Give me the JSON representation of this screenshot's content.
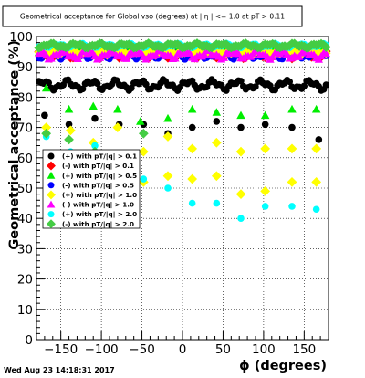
{
  "chart_data": {
    "type": "scatter",
    "title": "Geometrical acceptance for Global vsφ (degrees) at | η | <= 1.0 at pT > 0.11",
    "xlabel": "ϕ (degrees)",
    "ylabel": "Geometrical acceptance (%)",
    "xlim": [
      -180,
      180
    ],
    "ylim": [
      0,
      100
    ],
    "x_ticks": [
      -150,
      -100,
      -50,
      0,
      50,
      100,
      150
    ],
    "x_tick_labels": [
      "−150",
      "−100",
      "−50",
      "0",
      "50",
      "100",
      "150"
    ],
    "y_ticks": [
      0,
      10,
      20,
      30,
      40,
      50,
      60,
      70,
      80,
      90,
      100
    ],
    "y_tick_labels": [
      "0",
      "10",
      "20",
      "30",
      "40",
      "50",
      "60",
      "70",
      "80",
      "90",
      "100"
    ],
    "grid": true,
    "legend_position": "middle-left",
    "series": [
      {
        "name": "(+) with pT/|q| > 0.1",
        "color": "#000000",
        "marker": "circle",
        "level": 84,
        "amp": 1.2
      },
      {
        "name": "(-) with pT/|q| > 0.1",
        "color": "#ff0000",
        "marker": "square",
        "level": 94,
        "amp": 0.8
      },
      {
        "name": "(+) with pT/|q| > 0.5",
        "color": "#00ee00",
        "marker": "triangle",
        "level": 95,
        "amp": 0.8
      },
      {
        "name": "(-) with pT/|q| > 0.5",
        "color": "#0000ff",
        "marker": "circle",
        "level": 94,
        "amp": 1.0
      },
      {
        "name": "(+) with pT/|q| > 1.0",
        "color": "#ffff00",
        "marker": "square",
        "level": 95,
        "amp": 0.8
      },
      {
        "name": "(-) with pT/|q| > 1.0",
        "color": "#ff00ff",
        "marker": "triangle",
        "level": 94,
        "amp": 1.0
      },
      {
        "name": "(+) with pT/|q| > 2.0",
        "color": "#00ffff",
        "marker": "circle",
        "level": 97,
        "amp": 0.5
      },
      {
        "name": "(-) with pT/|q| > 2.0",
        "color": "#44cc44",
        "marker": "square",
        "level": 97,
        "amp": 0.5
      }
    ],
    "sparse_points": [
      {
        "series": 0,
        "marker": "circle",
        "color": "#000000",
        "points": [
          [
            -170,
            74
          ],
          [
            -140,
            71
          ],
          [
            -108,
            73
          ],
          [
            -78,
            71
          ],
          [
            -48,
            71
          ],
          [
            -18,
            68
          ],
          [
            12,
            70
          ],
          [
            42,
            72
          ],
          [
            72,
            70
          ],
          [
            102,
            71
          ],
          [
            135,
            70
          ],
          [
            168,
            66
          ]
        ]
      },
      {
        "series": 2,
        "marker": "triangle",
        "color": "#00ee00",
        "points": [
          [
            -168,
            83
          ],
          [
            -140,
            76
          ],
          [
            -110,
            77
          ],
          [
            -80,
            76
          ],
          [
            -52,
            72
          ],
          [
            -18,
            73
          ],
          [
            12,
            76
          ],
          [
            42,
            75
          ],
          [
            72,
            74
          ],
          [
            102,
            74
          ],
          [
            135,
            76
          ],
          [
            165,
            76
          ]
        ]
      },
      {
        "series": 4,
        "marker": "square",
        "color": "#ffff00",
        "points": [
          [
            -168,
            70
          ],
          [
            -138,
            69
          ],
          [
            -110,
            65
          ],
          [
            -80,
            70
          ],
          [
            -48,
            62
          ],
          [
            -18,
            67
          ],
          [
            12,
            63
          ],
          [
            42,
            65
          ],
          [
            72,
            62
          ],
          [
            102,
            63
          ],
          [
            135,
            63
          ],
          [
            165,
            63
          ]
        ]
      },
      {
        "series": 4,
        "marker": "square",
        "color": "#ffff00",
        "points": [
          [
            -110,
            58
          ],
          [
            -80,
            57
          ],
          [
            -48,
            52
          ],
          [
            -18,
            54
          ],
          [
            12,
            53
          ],
          [
            42,
            54
          ],
          [
            72,
            48
          ],
          [
            102,
            49
          ],
          [
            135,
            52
          ],
          [
            165,
            52
          ]
        ]
      },
      {
        "series": 6,
        "marker": "circle",
        "color": "#00ffff",
        "points": [
          [
            -168,
            67
          ],
          [
            -138,
            62
          ],
          [
            -108,
            64
          ],
          [
            -80,
            57
          ],
          [
            -48,
            53
          ],
          [
            -18,
            50
          ],
          [
            12,
            45
          ],
          [
            42,
            45
          ],
          [
            72,
            40
          ],
          [
            102,
            44
          ],
          [
            135,
            44
          ],
          [
            165,
            43
          ]
        ]
      },
      {
        "series": 7,
        "marker": "square",
        "color": "#44cc44",
        "points": [
          [
            -168,
            68
          ],
          [
            -140,
            66
          ],
          [
            -108,
            62
          ],
          [
            -80,
            61
          ],
          [
            -48,
            68
          ]
        ]
      }
    ],
    "date_stamp": "Wed Aug 23 14:18:31 2017"
  }
}
